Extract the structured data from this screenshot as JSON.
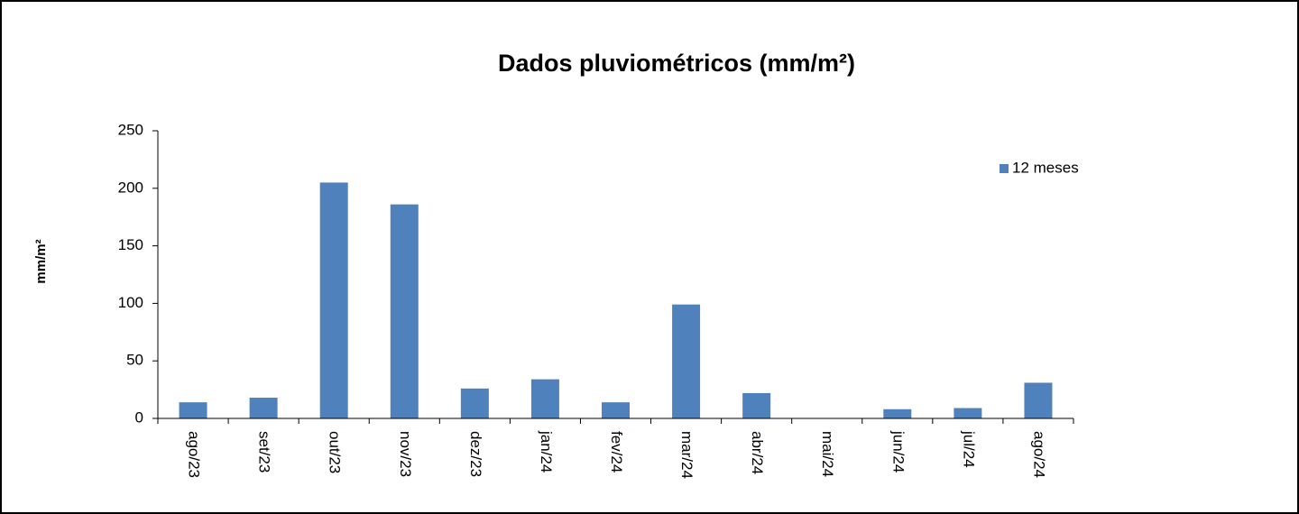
{
  "chart_data": {
    "type": "bar",
    "title": "Dados pluviométricos (mm/m²)",
    "y_label": "mm/m²",
    "categories": [
      "ago/23",
      "set/23",
      "out/23",
      "nov/23",
      "dez/23",
      "jan/24",
      "fev/24",
      "mar/24",
      "abr/24",
      "mai/24",
      "jun/24",
      "jul/24",
      "ago/24"
    ],
    "series": [
      {
        "name": "12 meses",
        "color": "#4f81bd",
        "values": [
          14,
          18,
          205,
          186,
          26,
          34,
          14,
          99,
          22,
          0,
          8,
          9,
          31
        ]
      }
    ],
    "ylim": [
      0,
      250
    ],
    "yticks": [
      0,
      50,
      100,
      150,
      200,
      250
    ],
    "grid": false,
    "legend": "right"
  }
}
